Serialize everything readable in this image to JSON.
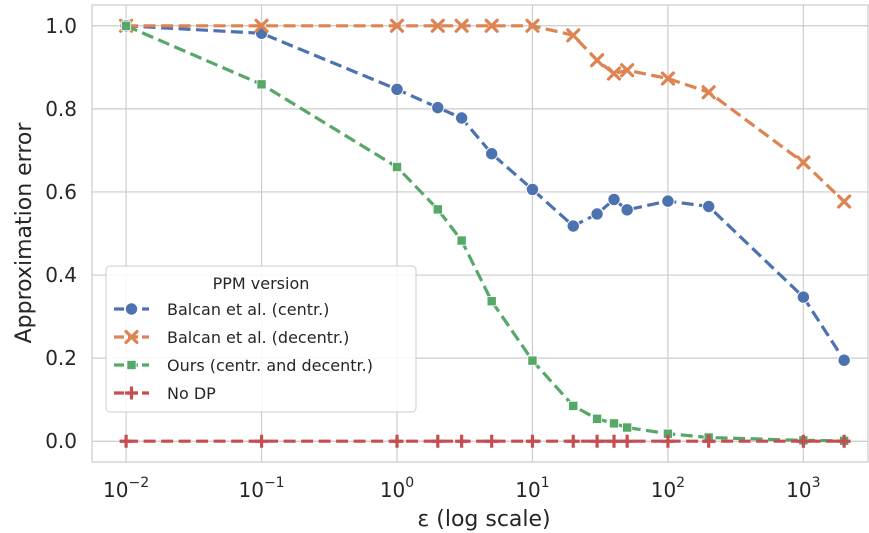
{
  "chart_data": {
    "type": "line",
    "xlabel": "ε (log scale)",
    "ylabel": "Approximation error",
    "xscale": "log",
    "xlim": [
      0.0056,
      3000
    ],
    "ylim": [
      -0.05,
      1.05
    ],
    "grid": true,
    "x_ticks": [
      {
        "value": 0.01,
        "base": "10",
        "exp": "−2"
      },
      {
        "value": 0.1,
        "base": "10",
        "exp": "−1"
      },
      {
        "value": 1,
        "base": "10",
        "exp": "0"
      },
      {
        "value": 10,
        "base": "10",
        "exp": "1"
      },
      {
        "value": 100,
        "base": "10",
        "exp": "2"
      },
      {
        "value": 1000,
        "base": "10",
        "exp": "3"
      }
    ],
    "y_ticks": [
      {
        "value": 0.0,
        "label": "0.0"
      },
      {
        "value": 0.2,
        "label": "0.2"
      },
      {
        "value": 0.4,
        "label": "0.4"
      },
      {
        "value": 0.6,
        "label": "0.6"
      },
      {
        "value": 0.8,
        "label": "0.8"
      },
      {
        "value": 1.0,
        "label": "1.0"
      }
    ],
    "legend": {
      "title": "PPM version",
      "placement": "center-left"
    },
    "series": [
      {
        "name": "Balcan et al. (centr.)",
        "color": "#4c72b0",
        "marker": "circle",
        "x": [
          0.01,
          0.1,
          1,
          2,
          3,
          5,
          10,
          20,
          30,
          40,
          50,
          100,
          200,
          1000,
          2000
        ],
        "y": [
          1.0,
          0.982,
          0.847,
          0.803,
          0.778,
          0.692,
          0.606,
          0.518,
          0.547,
          0.582,
          0.557,
          0.578,
          0.565,
          0.347,
          0.195
        ]
      },
      {
        "name": "Balcan et al. (decentr.)",
        "color": "#dd8452",
        "marker": "x",
        "x": [
          0.01,
          0.1,
          1,
          2,
          3,
          5,
          10,
          20,
          30,
          40,
          50,
          100,
          200,
          1000,
          2000
        ],
        "y": [
          1.0,
          1.0,
          1.0,
          1.0,
          1.0,
          1.0,
          1.0,
          0.977,
          0.917,
          0.885,
          0.893,
          0.873,
          0.84,
          0.671,
          0.577
        ]
      },
      {
        "name": "Ours (centr. and decentr.)",
        "color": "#55a868",
        "marker": "square",
        "x": [
          0.01,
          0.1,
          1,
          2,
          3,
          5,
          10,
          20,
          30,
          40,
          50,
          100,
          200,
          1000,
          2000
        ],
        "y": [
          1.0,
          0.859,
          0.66,
          0.558,
          0.483,
          0.337,
          0.194,
          0.085,
          0.054,
          0.043,
          0.033,
          0.018,
          0.009,
          0.002,
          0.001
        ]
      },
      {
        "name": "No DP",
        "color": "#c44e52",
        "marker": "plus",
        "x": [
          0.01,
          0.1,
          1,
          2,
          3,
          5,
          10,
          20,
          30,
          40,
          50,
          100,
          200,
          1000,
          2000
        ],
        "y": [
          0,
          0,
          0,
          0,
          0,
          0,
          0,
          0,
          0,
          0,
          0,
          0,
          0,
          0,
          0
        ]
      }
    ]
  }
}
